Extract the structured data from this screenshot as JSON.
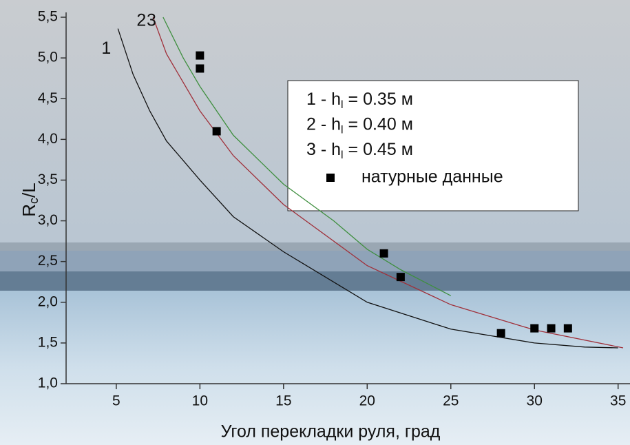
{
  "chart_data": {
    "type": "line",
    "x_label": "Угол перекладки руля, град",
    "y_label_parts": [
      "R",
      "c",
      "/L"
    ],
    "xlim": [
      2,
      35.3
    ],
    "ylim": [
      1.0,
      5.5
    ],
    "xticks": [
      5,
      10,
      15,
      20,
      25,
      30,
      35
    ],
    "yticks": [
      {
        "value": 1.0,
        "label": "1,0"
      },
      {
        "value": 1.5,
        "label": "1,5"
      },
      {
        "value": 2.0,
        "label": "2,0"
      },
      {
        "value": 2.5,
        "label": "2,5"
      },
      {
        "value": 3.0,
        "label": "3,0"
      },
      {
        "value": 3.5,
        "label": "3,5"
      },
      {
        "value": 4.0,
        "label": "4,0"
      },
      {
        "value": 4.5,
        "label": "4,5"
      },
      {
        "value": 5.0,
        "label": "5,0"
      },
      {
        "value": 5.5,
        "label": "5,5"
      }
    ],
    "series": [
      {
        "name_parts": [
          "1 -  h",
          "l",
          " = 0.35 м"
        ],
        "curve_label": "1",
        "color": "#111111",
        "x": [
          5.1,
          6,
          7,
          8,
          10,
          12,
          15,
          20,
          25,
          30,
          33,
          35
        ],
        "values": [
          5.36,
          4.8,
          4.35,
          3.98,
          3.5,
          3.05,
          2.62,
          2.0,
          1.67,
          1.5,
          1.45,
          1.44
        ]
      },
      {
        "name_parts": [
          "2 -  h",
          "l",
          " = 0.40 м"
        ],
        "curve_label": "2",
        "color": "#a0303a",
        "x": [
          7.2,
          8,
          10,
          12,
          15,
          20,
          25,
          30,
          35.3
        ],
        "values": [
          5.5,
          5.05,
          4.35,
          3.8,
          3.2,
          2.45,
          1.97,
          1.66,
          1.44
        ]
      },
      {
        "name_parts": [
          "3 -  h",
          "l",
          " = 0.45 м"
        ],
        "curve_label": "3",
        "color": "#3f8f3f",
        "x": [
          7.8,
          9,
          10,
          12,
          15,
          18,
          20,
          22,
          25
        ],
        "values": [
          5.5,
          5.0,
          4.65,
          4.05,
          3.45,
          3.0,
          2.65,
          2.4,
          2.08
        ]
      },
      {
        "type": "scatter",
        "name": "натурные данные",
        "color": "#000000",
        "x": [
          10,
          10,
          11,
          21,
          22,
          28,
          30,
          31,
          32
        ],
        "values": [
          5.03,
          4.87,
          4.1,
          2.6,
          2.31,
          1.62,
          1.68,
          1.68,
          1.68
        ]
      }
    ]
  }
}
